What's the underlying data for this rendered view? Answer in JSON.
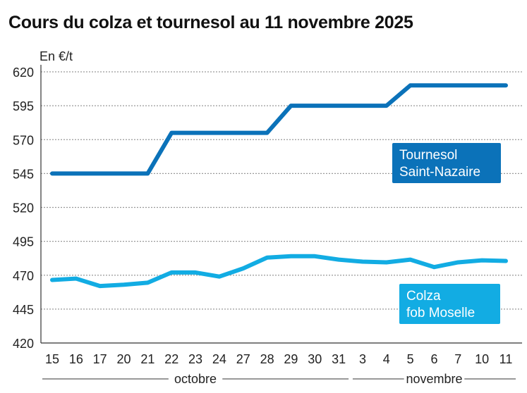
{
  "chart_data": {
    "type": "line",
    "title": "Cours du colza et tournesol au 11 novembre 2025",
    "ylabel": "En €/t",
    "ylim": [
      420,
      620
    ],
    "yticks": [
      420,
      445,
      470,
      495,
      520,
      545,
      570,
      595,
      620
    ],
    "grid": true,
    "categories": [
      "15",
      "16",
      "17",
      "20",
      "21",
      "22",
      "23",
      "24",
      "27",
      "28",
      "29",
      "30",
      "31",
      "3",
      "4",
      "5",
      "6",
      "7",
      "10",
      "11"
    ],
    "month_groups": [
      {
        "label": "octobre",
        "count": 13
      },
      {
        "label": "novembre",
        "count": 7
      }
    ],
    "series": [
      {
        "name": "Tournesol Saint-Nazaire",
        "name_lines": [
          "Tournesol",
          "Saint-Nazaire"
        ],
        "color": "#0b72b9",
        "values": [
          545,
          545,
          545,
          545,
          545,
          575,
          575,
          575,
          575,
          575,
          595,
          595,
          595,
          595,
          595,
          610,
          610,
          610,
          610,
          610
        ]
      },
      {
        "name": "Colza fob Moselle",
        "name_lines": [
          "Colza",
          "fob Moselle"
        ],
        "color": "#12ace3",
        "values": [
          466.5,
          467.5,
          462,
          463,
          464.5,
          472,
          472,
          469,
          475,
          483,
          484,
          484,
          481.5,
          480,
          479.5,
          481.5,
          476,
          479.5,
          481,
          480.5
        ]
      }
    ]
  }
}
